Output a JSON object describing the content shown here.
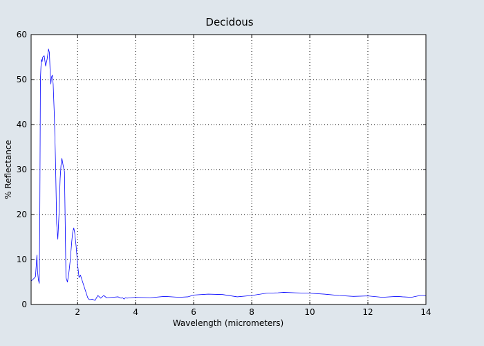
{
  "chart_data": {
    "type": "line",
    "title": "Decidous",
    "xlabel": "Wavelength (micrometers)",
    "ylabel": "% Reflectance",
    "xlim": [
      0.4,
      14
    ],
    "ylim": [
      0,
      60
    ],
    "x_ticks": [
      2,
      4,
      6,
      8,
      10,
      12,
      14
    ],
    "x_tick_labels": [
      "2",
      "4",
      "6",
      "8",
      "10",
      "12",
      "14"
    ],
    "y_ticks": [
      0,
      10,
      20,
      30,
      40,
      50,
      60
    ],
    "y_tick_labels": [
      "0",
      "10",
      "20",
      "30",
      "40",
      "50",
      "60"
    ],
    "grid": true,
    "legend": "none",
    "series": [
      {
        "color": "#0000ff",
        "x": [
          0.4,
          0.45,
          0.5,
          0.55,
          0.6,
          0.62,
          0.65,
          0.68,
          0.7,
          0.72,
          0.74,
          0.76,
          0.78,
          0.8,
          0.85,
          0.9,
          0.95,
          1.0,
          1.03,
          1.06,
          1.08,
          1.1,
          1.13,
          1.16,
          1.2,
          1.24,
          1.28,
          1.32,
          1.36,
          1.4,
          1.43,
          1.46,
          1.5,
          1.55,
          1.6,
          1.65,
          1.7,
          1.75,
          1.8,
          1.83,
          1.87,
          1.9,
          1.95,
          2.0,
          2.05,
          2.1,
          2.15,
          2.2,
          2.25,
          2.3,
          2.35,
          2.4,
          2.45,
          2.5,
          2.6,
          2.7,
          2.8,
          2.9,
          3.0,
          3.2,
          3.4,
          3.45,
          3.5,
          3.55,
          3.6,
          3.65,
          3.7,
          4.0,
          4.5,
          5.0,
          5.5,
          5.8,
          6.0,
          6.5,
          7.0,
          7.5,
          8.0,
          8.5,
          8.9,
          9.1,
          9.5,
          10.0,
          10.5,
          11.0,
          11.5,
          12.0,
          12.5,
          13.0,
          13.2,
          13.5,
          13.8,
          13.9,
          14.0
        ],
        "y": [
          5.2,
          5.5,
          5.8,
          6.2,
          11,
          7.5,
          5.5,
          4.7,
          20,
          50,
          53,
          54.5,
          54,
          55,
          55.3,
          53,
          54.5,
          56.8,
          56,
          51,
          49,
          50.5,
          51,
          49,
          42,
          32,
          18,
          14.5,
          20,
          28,
          31,
          32.5,
          31,
          29.5,
          6,
          5,
          7,
          10,
          14,
          16,
          17,
          16,
          13,
          9,
          6,
          6.5,
          5.5,
          4.5,
          3.5,
          2.5,
          1.5,
          1.1,
          1.1,
          1.2,
          0.9,
          2.0,
          1.4,
          2.0,
          1.5,
          1.6,
          1.7,
          1.5,
          1.4,
          1.5,
          1.2,
          1.5,
          1.4,
          1.6,
          1.5,
          1.8,
          1.6,
          1.7,
          2.1,
          2.3,
          2.2,
          1.7,
          2.0,
          2.5,
          2.6,
          2.7,
          2.6,
          2.5,
          2.3,
          2.0,
          1.8,
          1.9,
          1.6,
          1.8,
          1.7,
          1.6,
          2.0,
          2.0,
          1.9
        ]
      }
    ]
  }
}
